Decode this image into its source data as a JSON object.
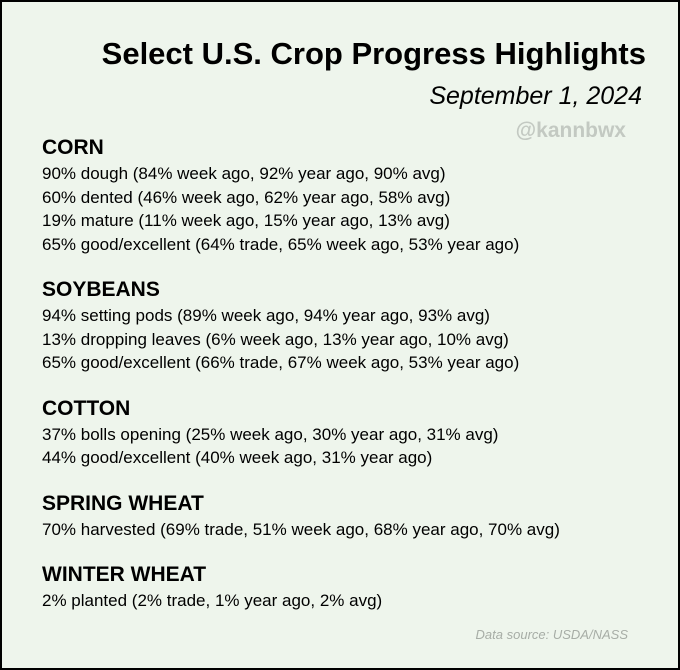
{
  "title": "Select U.S. Crop Progress Highlights",
  "date": "September 1, 2024",
  "handle": "@kannbwx",
  "source": "Data source: USDA/NASS",
  "sections": [
    {
      "heading": "CORN",
      "lines": [
        "90% dough (84% week ago, 92% year ago, 90% avg)",
        "60% dented (46% week ago, 62% year ago, 58% avg)",
        "19% mature (11% week ago, 15% year ago, 13% avg)",
        "65% good/excellent (64% trade, 65% week ago, 53% year ago)"
      ]
    },
    {
      "heading": "SOYBEANS",
      "lines": [
        "94% setting pods (89% week ago, 94% year ago, 93% avg)",
        "13% dropping leaves (6% week ago, 13% year ago, 10% avg)",
        "65% good/excellent (66% trade, 67% week ago, 53% year ago)"
      ]
    },
    {
      "heading": "COTTON",
      "lines": [
        "37% bolls opening (25% week ago, 30% year ago, 31% avg)",
        "44% good/excellent (40% week ago, 31% year ago)"
      ]
    },
    {
      "heading": "SPRING WHEAT",
      "lines": [
        "70% harvested (69% trade, 51% week ago, 68% year ago, 70% avg)"
      ]
    },
    {
      "heading": "WINTER WHEAT",
      "lines": [
        "2% planted (2% trade, 1% year ago, 2% avg)"
      ]
    }
  ]
}
